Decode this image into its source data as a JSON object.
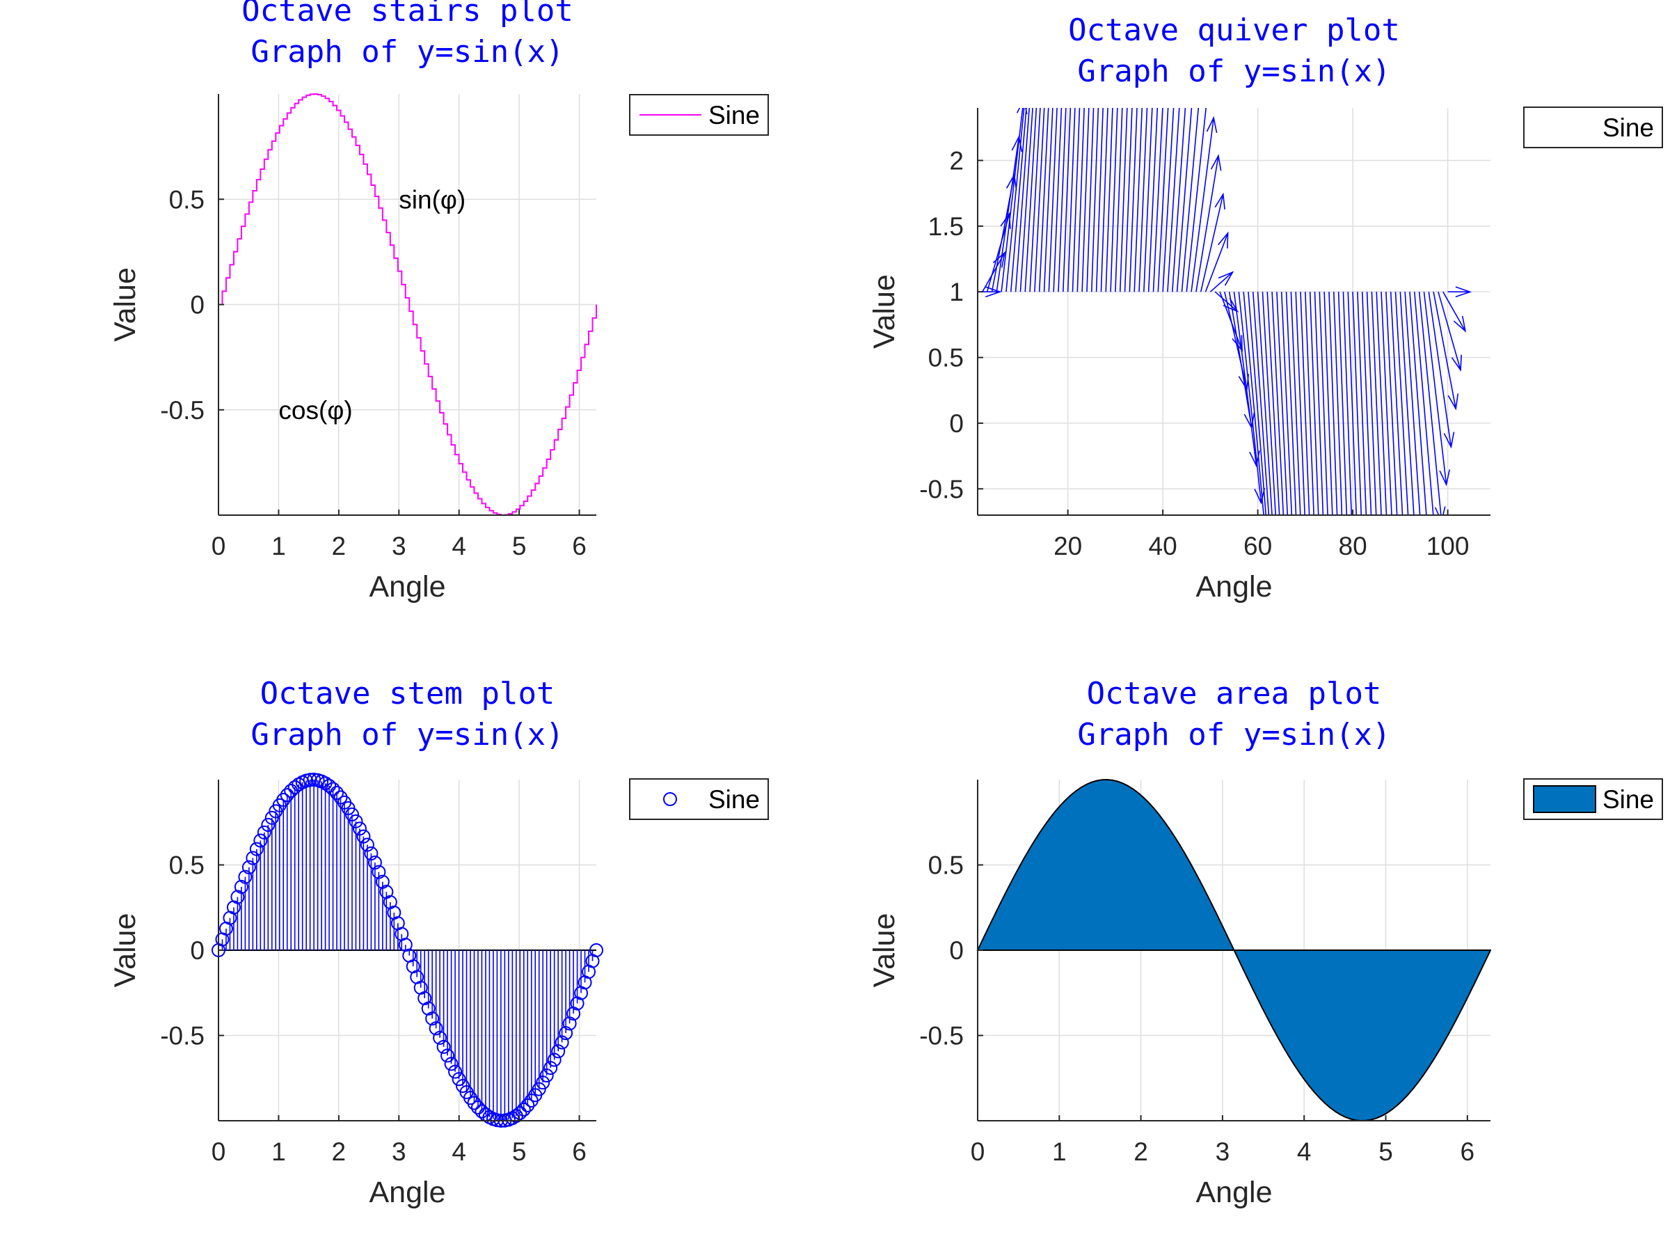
{
  "chart_data": [
    {
      "type": "stairs",
      "title": [
        "Octave stairs plot",
        "Graph of y=sin(x)"
      ],
      "xlabel": "Angle",
      "ylabel": "Value",
      "xlim": [
        0,
        6.283
      ],
      "ylim": [
        -1,
        1
      ],
      "xticks": [
        0,
        1,
        2,
        3,
        4,
        5,
        6
      ],
      "yticks": [
        -0.5,
        0,
        0.5
      ],
      "ytick_labels": [
        "-0.5",
        "0",
        "0.5"
      ],
      "grid": true,
      "legend": {
        "position": "outside-top-right",
        "entries": [
          "Sine"
        ]
      },
      "series": [
        {
          "name": "Sine",
          "color": "#ff00ff",
          "function": "sin(x)",
          "x_start": 0,
          "x_end": 6.283,
          "points": 100
        }
      ],
      "annotations": [
        {
          "text": "sin(φ)",
          "x": 3.0,
          "y": 0.5
        },
        {
          "text": "cos(φ)",
          "x": 1.0,
          "y": -0.5
        }
      ]
    },
    {
      "type": "quiver",
      "title": [
        "Octave quiver plot",
        "Graph of y=sin(x)"
      ],
      "xlabel": "Angle",
      "ylabel": "Value",
      "xlim": [
        1,
        109
      ],
      "ylim": [
        -0.7,
        2.4
      ],
      "xticks": [
        20,
        40,
        60,
        80,
        100
      ],
      "yticks": [
        -0.5,
        0,
        0.5,
        1,
        1.5,
        2
      ],
      "ytick_labels": [
        "-0.5",
        "0",
        "0.5",
        "1",
        "1.5",
        "2"
      ],
      "grid": true,
      "legend": {
        "position": "outside-top-right",
        "entries": [
          "Sine"
        ]
      },
      "series": [
        {
          "name": "Sine",
          "color": "#0000ff",
          "function": "origin (i, 1), vector (1, sin(x_i))",
          "x_start": 0,
          "x_end": 6.283,
          "points": 100
        }
      ]
    },
    {
      "type": "stem",
      "title": [
        "Octave stem plot",
        "Graph of y=sin(x)"
      ],
      "xlabel": "Angle",
      "ylabel": "Value",
      "xlim": [
        0,
        6.283
      ],
      "ylim": [
        -1,
        1
      ],
      "xticks": [
        0,
        1,
        2,
        3,
        4,
        5,
        6
      ],
      "yticks": [
        -0.5,
        0,
        0.5
      ],
      "ytick_labels": [
        "-0.5",
        "0",
        "0.5"
      ],
      "grid": true,
      "legend": {
        "position": "outside-top-right",
        "entries": [
          "Sine"
        ]
      },
      "series": [
        {
          "name": "Sine",
          "color": "#0000ff",
          "marker": "circle",
          "function": "sin(x)",
          "x_start": 0,
          "x_end": 6.283,
          "points": 100
        }
      ]
    },
    {
      "type": "area",
      "title": [
        "Octave area plot",
        "Graph of y=sin(x)"
      ],
      "xlabel": "Angle",
      "ylabel": "Value",
      "xlim": [
        0,
        6.283
      ],
      "ylim": [
        -1,
        1
      ],
      "xticks": [
        0,
        1,
        2,
        3,
        4,
        5,
        6
      ],
      "yticks": [
        -0.5,
        0,
        0.5
      ],
      "ytick_labels": [
        "-0.5",
        "0",
        "0.5"
      ],
      "grid": true,
      "legend": {
        "position": "outside-top-right",
        "entries": [
          "Sine"
        ]
      },
      "series": [
        {
          "name": "Sine",
          "color": "#0072bd",
          "function": "sin(x)",
          "x_start": 0,
          "x_end": 6.283,
          "points": 100
        }
      ]
    }
  ]
}
